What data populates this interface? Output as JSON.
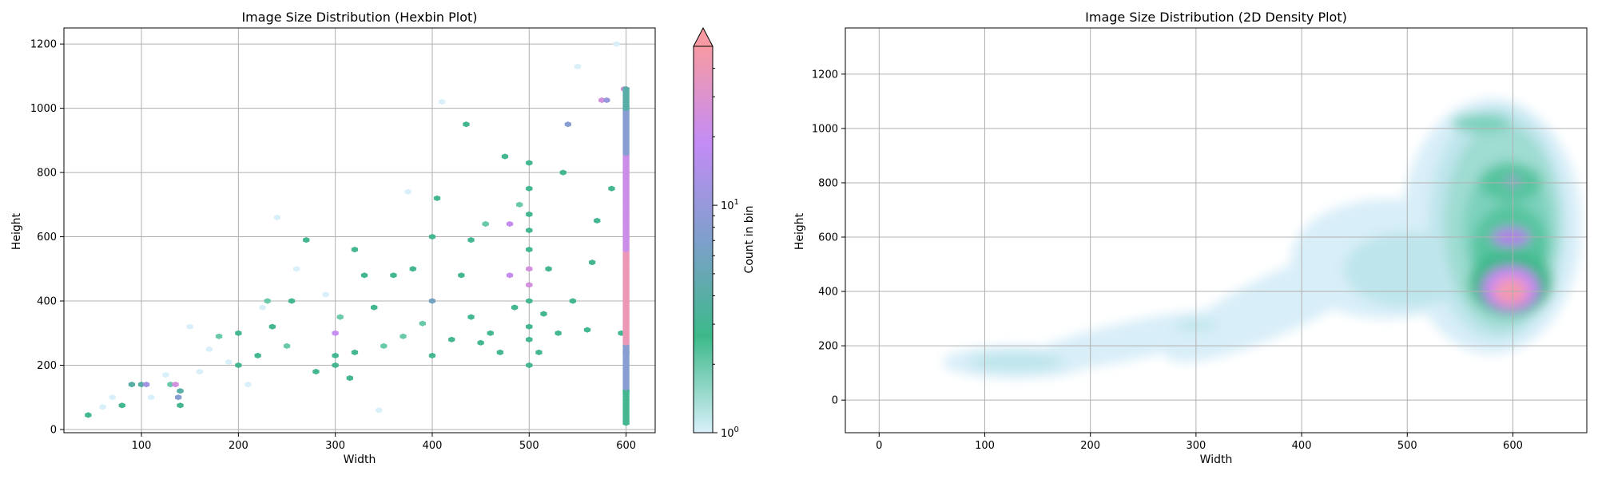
{
  "colors": {
    "scale": [
      "#d9f0fa",
      "#3cb98a",
      "#7f9fcc",
      "#c38cf5",
      "#f79aa3"
    ],
    "grid": "#b0b0b0",
    "frame": "#000000",
    "density_levels": [
      "#d8eef8",
      "#bfe5ec",
      "#9fdcd2",
      "#7dd1bd",
      "#56c49f",
      "#3db98b",
      "#b27fe8",
      "#cf8ef5",
      "#f39ab0"
    ]
  },
  "chart_data": [
    {
      "type": "heatmap",
      "variant": "hexbin",
      "title": "Image Size Distribution (Hexbin Plot)",
      "xlabel": "Width",
      "ylabel": "Height",
      "xlim": [
        20,
        630
      ],
      "ylim": [
        -10,
        1250
      ],
      "xticks": [
        100,
        200,
        300,
        400,
        500,
        600
      ],
      "yticks": [
        0,
        200,
        400,
        600,
        800,
        1000,
        1200
      ],
      "grid": true,
      "colorbar": {
        "label": "Count in bin",
        "scale": "log",
        "range": [
          1,
          50
        ],
        "ticks": [
          {
            "value": 1,
            "base": "10",
            "exp": "0"
          },
          {
            "value": 10,
            "base": "10",
            "exp": "1"
          }
        ],
        "extend": "max"
      },
      "bins": [
        {
          "x": 45,
          "y": 45,
          "count": 3
        },
        {
          "x": 60,
          "y": 70,
          "count": 1
        },
        {
          "x": 70,
          "y": 100,
          "count": 1
        },
        {
          "x": 80,
          "y": 75,
          "count": 3
        },
        {
          "x": 90,
          "y": 140,
          "count": 4
        },
        {
          "x": 100,
          "y": 140,
          "count": 4
        },
        {
          "x": 105,
          "y": 140,
          "count": 12
        },
        {
          "x": 110,
          "y": 100,
          "count": 1
        },
        {
          "x": 125,
          "y": 170,
          "count": 1
        },
        {
          "x": 130,
          "y": 140,
          "count": 2
        },
        {
          "x": 135,
          "y": 140,
          "count": 25
        },
        {
          "x": 138,
          "y": 100,
          "count": 8
        },
        {
          "x": 140,
          "y": 75,
          "count": 3
        },
        {
          "x": 140,
          "y": 120,
          "count": 4
        },
        {
          "x": 150,
          "y": 320,
          "count": 1
        },
        {
          "x": 160,
          "y": 180,
          "count": 1
        },
        {
          "x": 170,
          "y": 250,
          "count": 1
        },
        {
          "x": 180,
          "y": 290,
          "count": 2
        },
        {
          "x": 190,
          "y": 210,
          "count": 1
        },
        {
          "x": 200,
          "y": 200,
          "count": 3
        },
        {
          "x": 200,
          "y": 300,
          "count": 3
        },
        {
          "x": 210,
          "y": 140,
          "count": 1
        },
        {
          "x": 220,
          "y": 230,
          "count": 3
        },
        {
          "x": 225,
          "y": 380,
          "count": 1
        },
        {
          "x": 230,
          "y": 400,
          "count": 2
        },
        {
          "x": 235,
          "y": 320,
          "count": 3
        },
        {
          "x": 240,
          "y": 660,
          "count": 1
        },
        {
          "x": 250,
          "y": 260,
          "count": 2
        },
        {
          "x": 255,
          "y": 400,
          "count": 3
        },
        {
          "x": 260,
          "y": 500,
          "count": 1
        },
        {
          "x": 270,
          "y": 590,
          "count": 3
        },
        {
          "x": 280,
          "y": 180,
          "count": 3
        },
        {
          "x": 290,
          "y": 420,
          "count": 1
        },
        {
          "x": 300,
          "y": 200,
          "count": 3
        },
        {
          "x": 300,
          "y": 230,
          "count": 3
        },
        {
          "x": 300,
          "y": 300,
          "count": 20
        },
        {
          "x": 305,
          "y": 350,
          "count": 2
        },
        {
          "x": 315,
          "y": 160,
          "count": 3
        },
        {
          "x": 320,
          "y": 240,
          "count": 3
        },
        {
          "x": 320,
          "y": 560,
          "count": 3
        },
        {
          "x": 330,
          "y": 480,
          "count": 3
        },
        {
          "x": 340,
          "y": 380,
          "count": 3
        },
        {
          "x": 345,
          "y": 60,
          "count": 1
        },
        {
          "x": 350,
          "y": 260,
          "count": 2
        },
        {
          "x": 360,
          "y": 480,
          "count": 3
        },
        {
          "x": 370,
          "y": 290,
          "count": 2
        },
        {
          "x": 375,
          "y": 740,
          "count": 1
        },
        {
          "x": 380,
          "y": 500,
          "count": 3
        },
        {
          "x": 390,
          "y": 330,
          "count": 2
        },
        {
          "x": 400,
          "y": 230,
          "count": 3
        },
        {
          "x": 400,
          "y": 400,
          "count": 6
        },
        {
          "x": 400,
          "y": 600,
          "count": 3
        },
        {
          "x": 405,
          "y": 720,
          "count": 3
        },
        {
          "x": 410,
          "y": 1020,
          "count": 1
        },
        {
          "x": 420,
          "y": 280,
          "count": 3
        },
        {
          "x": 430,
          "y": 480,
          "count": 3
        },
        {
          "x": 435,
          "y": 950,
          "count": 3
        },
        {
          "x": 440,
          "y": 350,
          "count": 3
        },
        {
          "x": 440,
          "y": 590,
          "count": 3
        },
        {
          "x": 450,
          "y": 270,
          "count": 3
        },
        {
          "x": 455,
          "y": 640,
          "count": 2
        },
        {
          "x": 460,
          "y": 300,
          "count": 3
        },
        {
          "x": 470,
          "y": 240,
          "count": 3
        },
        {
          "x": 475,
          "y": 850,
          "count": 3
        },
        {
          "x": 480,
          "y": 480,
          "count": 20
        },
        {
          "x": 480,
          "y": 640,
          "count": 20
        },
        {
          "x": 485,
          "y": 380,
          "count": 3
        },
        {
          "x": 490,
          "y": 700,
          "count": 2
        },
        {
          "x": 500,
          "y": 200,
          "count": 3
        },
        {
          "x": 500,
          "y": 280,
          "count": 3
        },
        {
          "x": 500,
          "y": 320,
          "count": 3
        },
        {
          "x": 500,
          "y": 400,
          "count": 3
        },
        {
          "x": 500,
          "y": 450,
          "count": 25
        },
        {
          "x": 500,
          "y": 500,
          "count": 25
        },
        {
          "x": 500,
          "y": 560,
          "count": 3
        },
        {
          "x": 500,
          "y": 620,
          "count": 3
        },
        {
          "x": 500,
          "y": 670,
          "count": 3
        },
        {
          "x": 500,
          "y": 750,
          "count": 3
        },
        {
          "x": 500,
          "y": 830,
          "count": 3
        },
        {
          "x": 510,
          "y": 240,
          "count": 3
        },
        {
          "x": 515,
          "y": 360,
          "count": 3
        },
        {
          "x": 520,
          "y": 500,
          "count": 3
        },
        {
          "x": 530,
          "y": 300,
          "count": 3
        },
        {
          "x": 535,
          "y": 800,
          "count": 3
        },
        {
          "x": 540,
          "y": 950,
          "count": 8
        },
        {
          "x": 545,
          "y": 400,
          "count": 3
        },
        {
          "x": 550,
          "y": 1130,
          "count": 1
        },
        {
          "x": 560,
          "y": 310,
          "count": 3
        },
        {
          "x": 565,
          "y": 520,
          "count": 3
        },
        {
          "x": 570,
          "y": 650,
          "count": 3
        },
        {
          "x": 575,
          "y": 1025,
          "count": 25
        },
        {
          "x": 580,
          "y": 1025,
          "count": 10
        },
        {
          "x": 585,
          "y": 750,
          "count": 3
        },
        {
          "x": 590,
          "y": 1200,
          "count": 1
        },
        {
          "x": 595,
          "y": 300,
          "count": 3
        },
        {
          "x": 598,
          "y": 1060,
          "count": 25
        },
        {
          "x": 600,
          "y": 120,
          "count": 3
        },
        {
          "x": 600,
          "y": 240,
          "count": 8
        },
        {
          "x": 600,
          "y": 400,
          "count": 40
        },
        {
          "x": 600,
          "y": 600,
          "count": 25
        },
        {
          "x": 600,
          "y": 800,
          "count": 40
        },
        {
          "x": 600,
          "y": 1000,
          "count": 3
        }
      ]
    },
    {
      "type": "heatmap",
      "variant": "kde-2d-density",
      "title": "Image Size Distribution (2D Density Plot)",
      "xlabel": "Width",
      "ylabel": "Height",
      "xlim": [
        -32,
        670
      ],
      "ylim": [
        -120,
        1370
      ],
      "xticks": [
        0,
        100,
        200,
        300,
        400,
        500,
        600
      ],
      "yticks": [
        0,
        200,
        400,
        600,
        800,
        1000,
        1200
      ],
      "grid": true,
      "density_peaks": [
        {
          "x": 600,
          "y": 400,
          "weight": 1.0
        },
        {
          "x": 600,
          "y": 600,
          "weight": 0.72
        },
        {
          "x": 600,
          "y": 800,
          "weight": 0.5
        },
        {
          "x": 580,
          "y": 1020,
          "weight": 0.3
        },
        {
          "x": 500,
          "y": 480,
          "weight": 0.18
        },
        {
          "x": 430,
          "y": 480,
          "weight": 0.12
        },
        {
          "x": 300,
          "y": 280,
          "weight": 0.1
        },
        {
          "x": 130,
          "y": 130,
          "weight": 0.1
        }
      ]
    }
  ]
}
